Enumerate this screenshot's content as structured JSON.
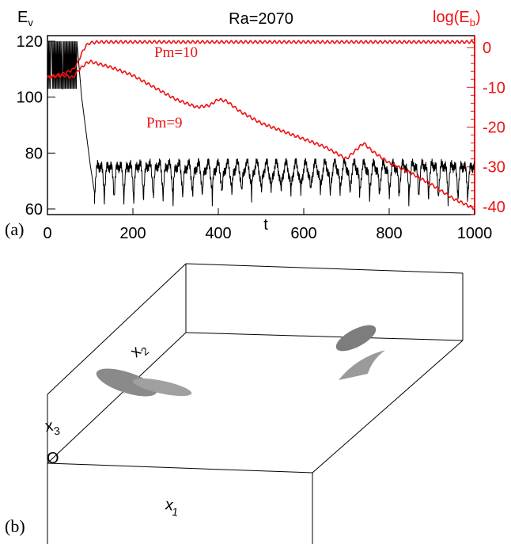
{
  "panel_a_label": "(a)",
  "panel_b_label": "(b)",
  "chart_data": {
    "type": "line",
    "title": "Ra=2070",
    "xlabel": "t",
    "ylabel_left": "E",
    "ylabel_left_sub": "v",
    "ylabel_right": "log(E",
    "ylabel_right_sub": "b",
    "ylabel_right_close": ")",
    "xlim": [
      0,
      1000
    ],
    "ylim_left": [
      58,
      122
    ],
    "ylim_right": [
      -42,
      3
    ],
    "x_ticks": [
      "0",
      "200",
      "400",
      "600",
      "800",
      "1000"
    ],
    "x_tick_values": [
      0,
      200,
      400,
      600,
      800,
      1000
    ],
    "y_left_ticks": [
      "60",
      "80",
      "100",
      "120"
    ],
    "y_left_tick_values": [
      60,
      80,
      100,
      120
    ],
    "y_right_ticks": [
      "0",
      "-10",
      "-20",
      "-30",
      "-40"
    ],
    "y_right_tick_values": [
      0,
      -10,
      -20,
      -30,
      -40
    ],
    "colors": {
      "Ev": "#000000",
      "log_Eb": "#ee1111"
    },
    "series": [
      {
        "axis": "right",
        "label": "Pm=10",
        "x": [
          0,
          20,
          40,
          60,
          70,
          80,
          90,
          100,
          120,
          200,
          400,
          600,
          800,
          1000
        ],
        "y": [
          -7.5,
          -7,
          -6.5,
          -5.5,
          -4,
          -1.5,
          0.5,
          1.2,
          1.4,
          1.4,
          1.4,
          1.4,
          1.4,
          1.4
        ]
      },
      {
        "axis": "right",
        "label": "Pm=9",
        "x": [
          0,
          20,
          40,
          60,
          70,
          80,
          90,
          100,
          150,
          200,
          250,
          300,
          350,
          380,
          400,
          420,
          450,
          500,
          550,
          600,
          650,
          700,
          720,
          740,
          760,
          800,
          850,
          900,
          950,
          1000
        ],
        "y": [
          -7.5,
          -7.2,
          -7,
          -7.5,
          -6,
          -5,
          -4,
          -3.5,
          -5,
          -7,
          -10,
          -13,
          -15,
          -14.5,
          -13,
          -13.5,
          -16,
          -19,
          -21,
          -23,
          -25,
          -28,
          -26,
          -24,
          -26,
          -29,
          -31.5,
          -34.5,
          -38,
          -40.5
        ]
      },
      {
        "axis": "left",
        "label": "",
        "x": [
          0,
          20,
          40,
          60,
          70,
          80,
          90,
          100,
          110
        ],
        "y": [
          112,
          112,
          112,
          112,
          108,
          100,
          88,
          76,
          66
        ]
      }
    ],
    "oscillation": {
      "t_start": 110,
      "t_end": 1000,
      "period": 23,
      "Ev_low": 62,
      "Ev_high": 76
    },
    "early_oscillation": {
      "t_end": 70,
      "Ev_low": 103,
      "Ev_high": 120
    }
  },
  "panel_b": {
    "axis_x1": "x",
    "axis_x1_sub": "1",
    "axis_x2": "x",
    "axis_x2_sub": "2",
    "axis_x3": "x",
    "axis_x3_sub": "3",
    "origin_label": "O"
  }
}
